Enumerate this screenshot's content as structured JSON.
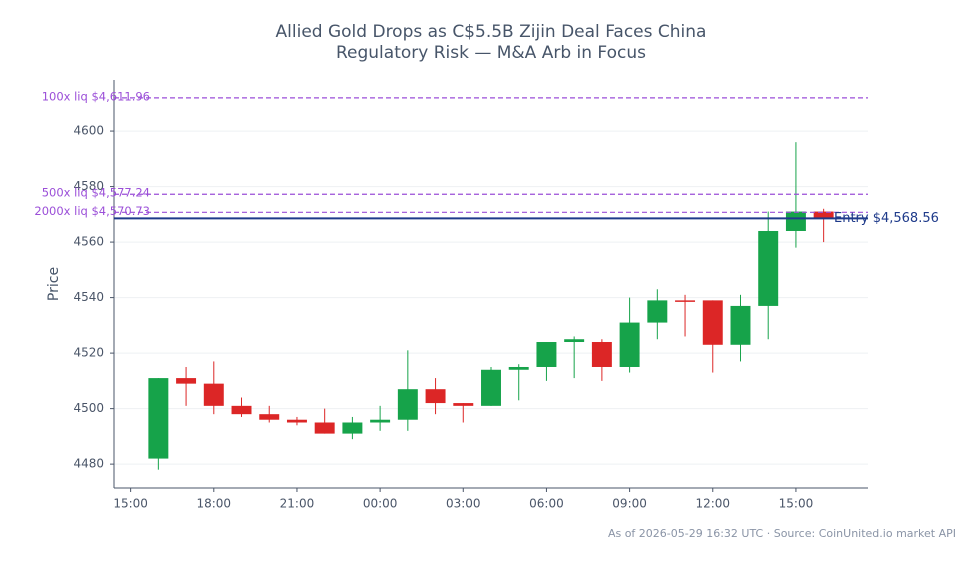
{
  "chart_data": {
    "type": "candlestick",
    "title": [
      "Allied Gold Drops as C$5.5B Zijin Deal Faces China",
      "Regulatory Risk — M&A Arb in Focus"
    ],
    "ylabel": "Price",
    "footer": "As of 2026-05-29 16:32 UTC · Source: CoinUnited.io market API",
    "up_color": "#16a34a",
    "down_color": "#dc2626",
    "x": [
      1,
      2,
      3,
      4,
      5,
      6,
      7,
      8,
      9,
      10,
      11,
      12,
      13,
      14,
      15,
      16,
      17,
      18,
      19,
      20,
      21,
      22,
      23,
      24,
      25
    ],
    "open": [
      4482,
      4511,
      4509,
      4501,
      4498,
      4496,
      4495,
      4491,
      4495,
      4496,
      4507,
      4502,
      4501,
      4514,
      4515,
      4524,
      4524,
      4515,
      4531,
      4539,
      4539,
      4523,
      4537,
      4564,
      4571
    ],
    "high": [
      4511,
      4515,
      4517,
      4504,
      4501,
      4497,
      4500,
      4497,
      4501,
      4521,
      4511,
      4502,
      4515,
      4516,
      4524,
      4526,
      4525,
      4540,
      4543,
      4541,
      4539,
      4541,
      4571,
      4596,
      4572
    ],
    "low": [
      4478,
      4501,
      4498,
      4497,
      4495,
      4494,
      4491,
      4489,
      4492,
      4492,
      4498,
      4495,
      4501,
      4503,
      4510,
      4511,
      4510,
      4513,
      4525,
      4526,
      4513,
      4517,
      4525,
      4558,
      4560
    ],
    "close": [
      4511,
      4509,
      4501,
      4498,
      4496,
      4495,
      4491,
      4495,
      4496,
      4507,
      4502,
      4501,
      4514,
      4515,
      4524,
      4525,
      4515,
      4531,
      4539,
      4538.5,
      4523,
      4537,
      4564,
      4571,
      4568.56
    ],
    "xlim": [
      -0.6,
      26.6
    ],
    "xticks": [
      {
        "value": 0,
        "label": "15:00"
      },
      {
        "value": 3,
        "label": "18:00"
      },
      {
        "value": 6,
        "label": "21:00"
      },
      {
        "value": 9,
        "label": "00:00"
      },
      {
        "value": 12,
        "label": "03:00"
      },
      {
        "value": 15,
        "label": "06:00"
      },
      {
        "value": 18,
        "label": "09:00"
      },
      {
        "value": 21,
        "label": "12:00"
      },
      {
        "value": 24,
        "label": "15:00"
      }
    ],
    "ylim": [
      4471.4,
      4618.4
    ],
    "yticks": [
      4480,
      4500,
      4520,
      4540,
      4560,
      4580,
      4600
    ],
    "grid": true,
    "lines": [
      {
        "value": 4611.96,
        "label": "100x liq $4,611.96",
        "color": "#9b4fd8",
        "style": "dashed"
      },
      {
        "value": 4577.24,
        "label": "500x liq $4,577.24",
        "color": "#9b4fd8",
        "style": "dashed"
      },
      {
        "value": 4570.73,
        "label": "2000x liq $4,570.73",
        "color": "#9b4fd8",
        "style": "dashed"
      },
      {
        "value": 4568.56,
        "label": "Entry $4,568.56",
        "color": "#1e3a8a",
        "style": "solid"
      }
    ]
  }
}
